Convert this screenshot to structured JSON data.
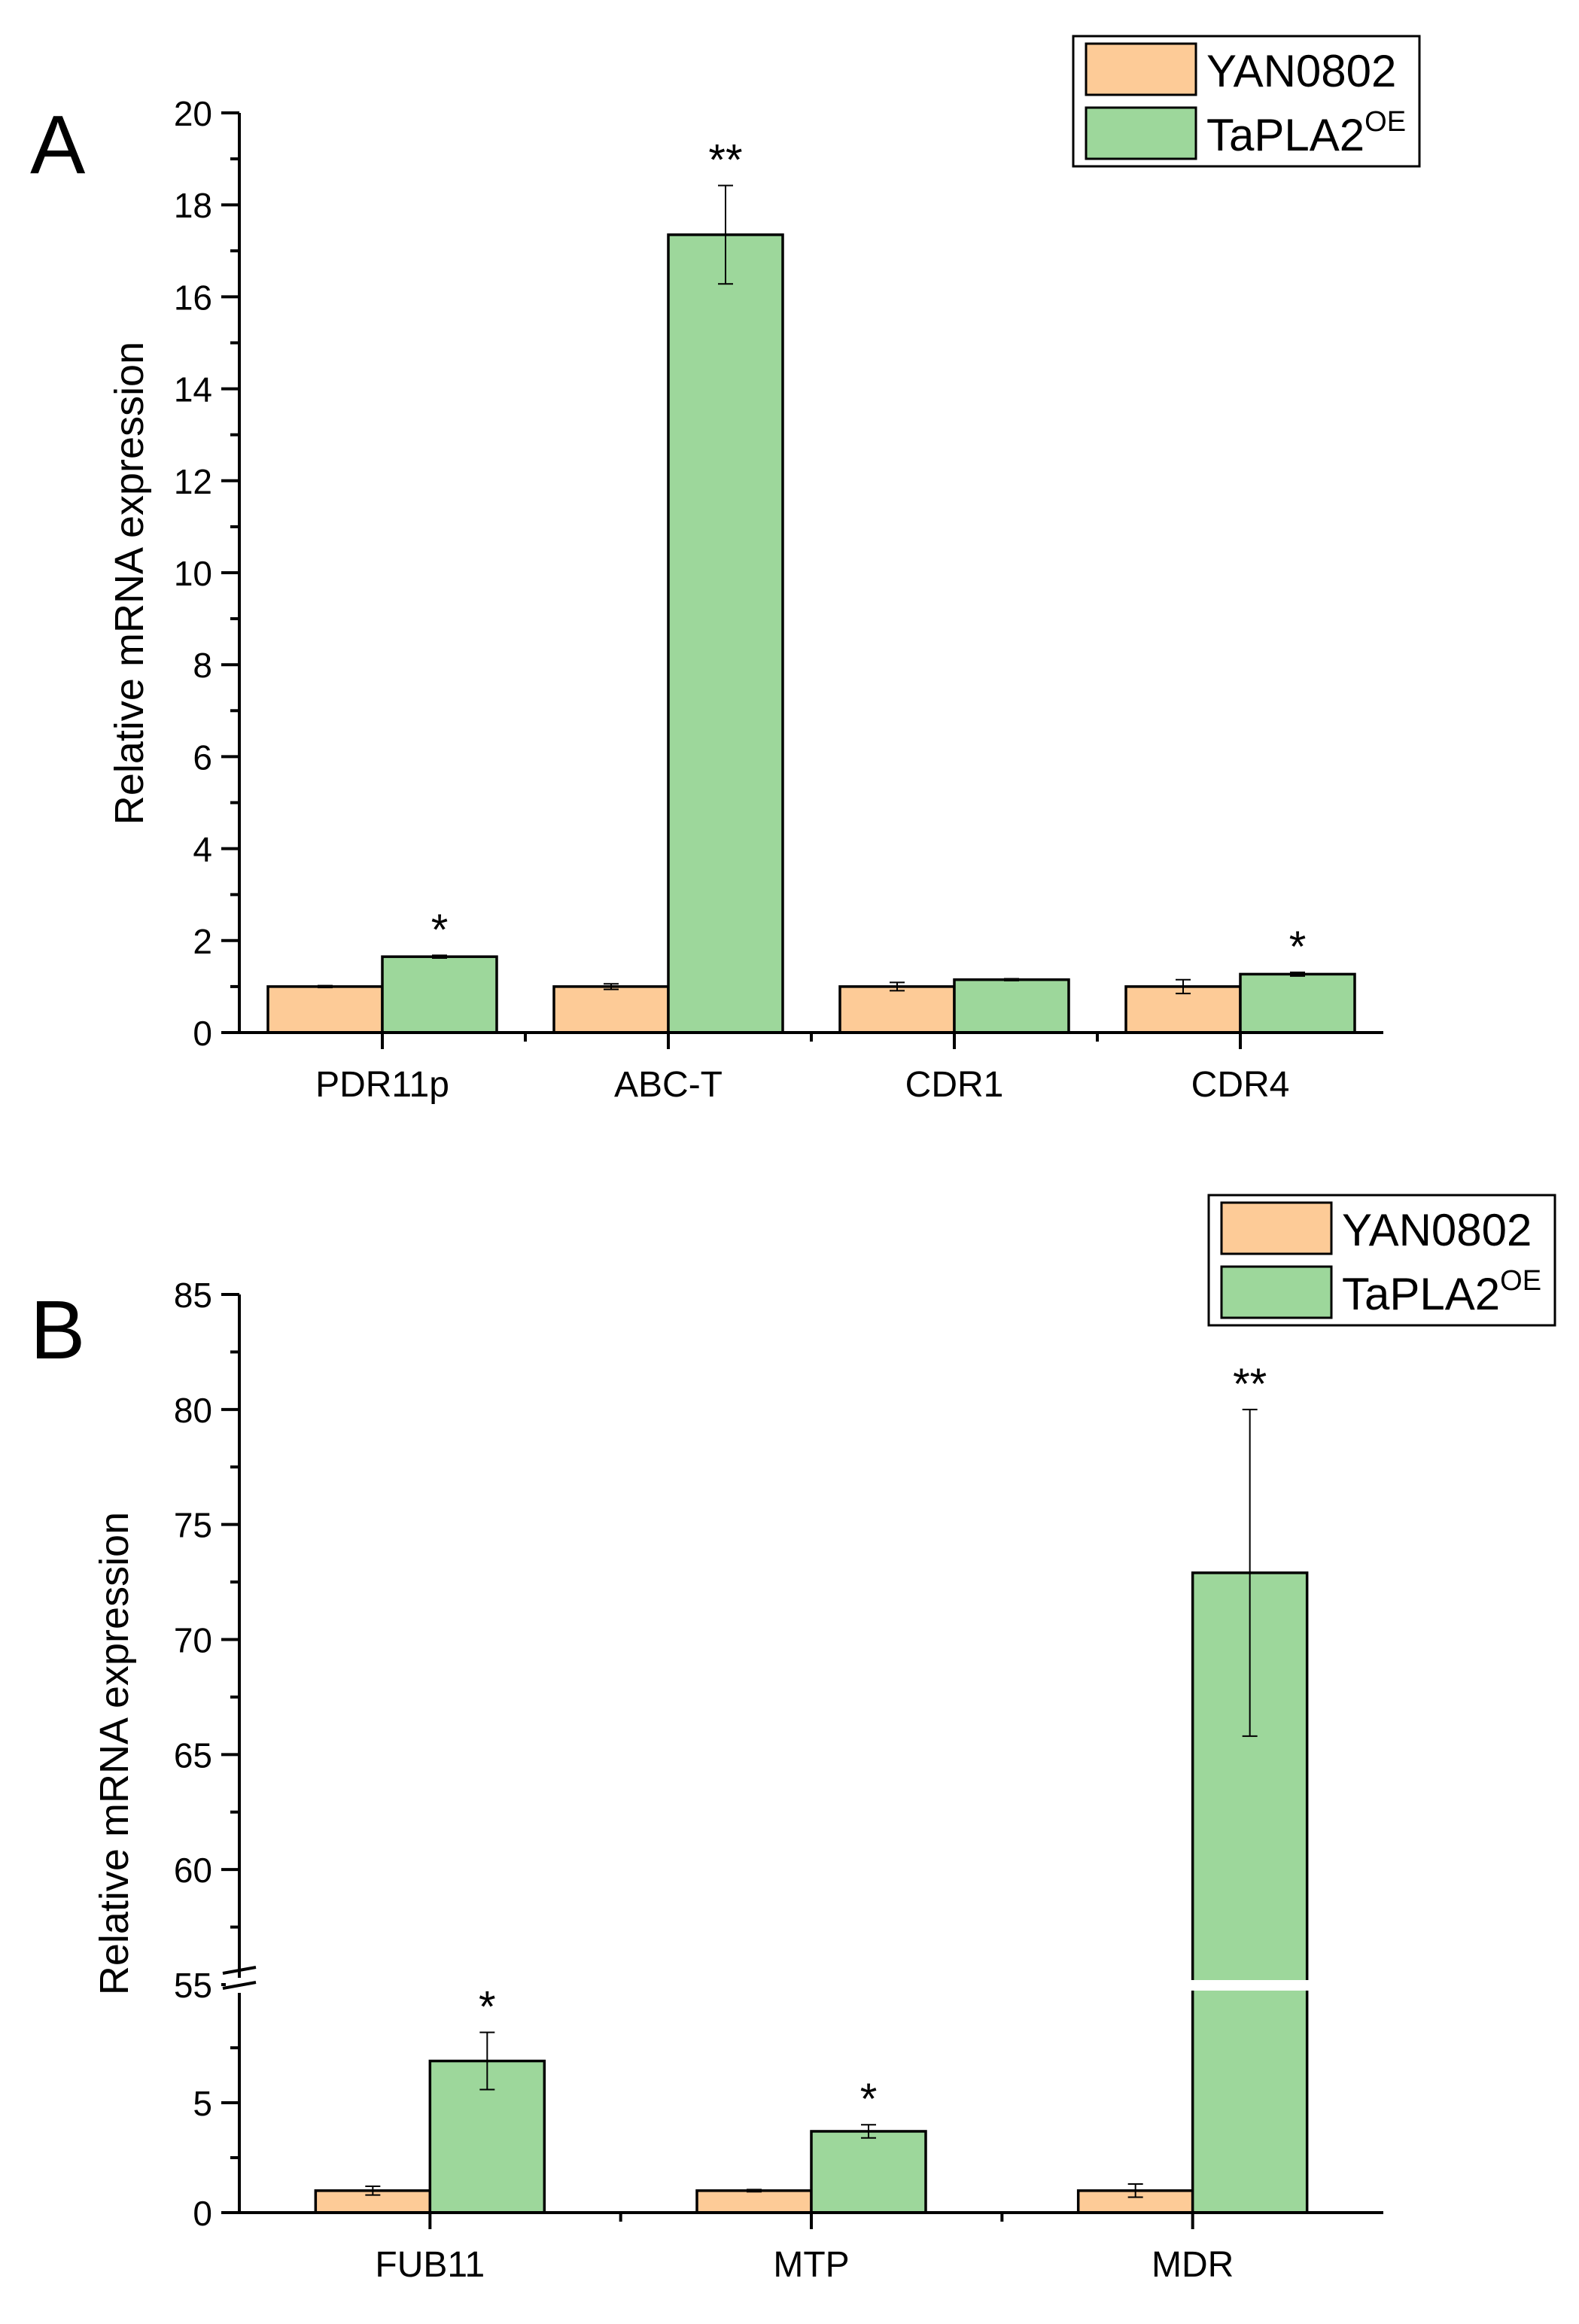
{
  "colors": {
    "yan0802": "#fdcb97",
    "taPLA2": "#9dd79b"
  },
  "chart_data": [
    {
      "panel_label": "A",
      "type": "bar",
      "ylabel": "Relative mRNA expression",
      "xlabel": "",
      "ylim": [
        0,
        20
      ],
      "y_ticks": [
        "0",
        "2",
        "4",
        "6",
        "8",
        "10",
        "12",
        "14",
        "16",
        "18",
        "20"
      ],
      "categories": [
        "PDR11p",
        "ABC-T",
        "CDR1",
        "CDR4"
      ],
      "legend": [
        {
          "name": "YAN0802",
          "sup": ""
        },
        {
          "name": "TaPLA2",
          "sup": "OE"
        }
      ],
      "series": [
        {
          "name": "YAN0802",
          "values": [
            1.0,
            1.0,
            1.0,
            1.0
          ],
          "errors": [
            0.02,
            0.06,
            0.09,
            0.15
          ],
          "marks": [
            "",
            "",
            "",
            ""
          ]
        },
        {
          "name": "TaPLA2OE",
          "values": [
            1.65,
            17.35,
            1.15,
            1.27
          ],
          "errors": [
            0.03,
            1.07,
            0.02,
            0.04
          ],
          "marks": [
            "*",
            "**",
            "",
            "*"
          ]
        }
      ]
    },
    {
      "panel_label": "B",
      "type": "bar",
      "ylabel": "Relative mRNA expression",
      "xlabel": "",
      "axis_break": [
        10,
        55
      ],
      "ylim": [
        0,
        85
      ],
      "y_ticks": [
        "0",
        "5",
        "55",
        "60",
        "65",
        "70",
        "75",
        "80",
        "85"
      ],
      "categories": [
        "FUB11",
        "MTP",
        "MDR"
      ],
      "legend": [
        {
          "name": "YAN0802",
          "sup": ""
        },
        {
          "name": "TaPLA2",
          "sup": "OE"
        }
      ],
      "series": [
        {
          "name": "YAN0802",
          "values": [
            1.0,
            1.0,
            1.0
          ],
          "errors": [
            0.2,
            0.05,
            0.3
          ],
          "marks": [
            "",
            "",
            ""
          ]
        },
        {
          "name": "TaPLA2OE",
          "values": [
            6.9,
            3.7,
            72.9
          ],
          "errors": [
            1.3,
            0.3,
            7.1
          ],
          "marks": [
            "*",
            "*",
            "**"
          ]
        }
      ]
    }
  ]
}
